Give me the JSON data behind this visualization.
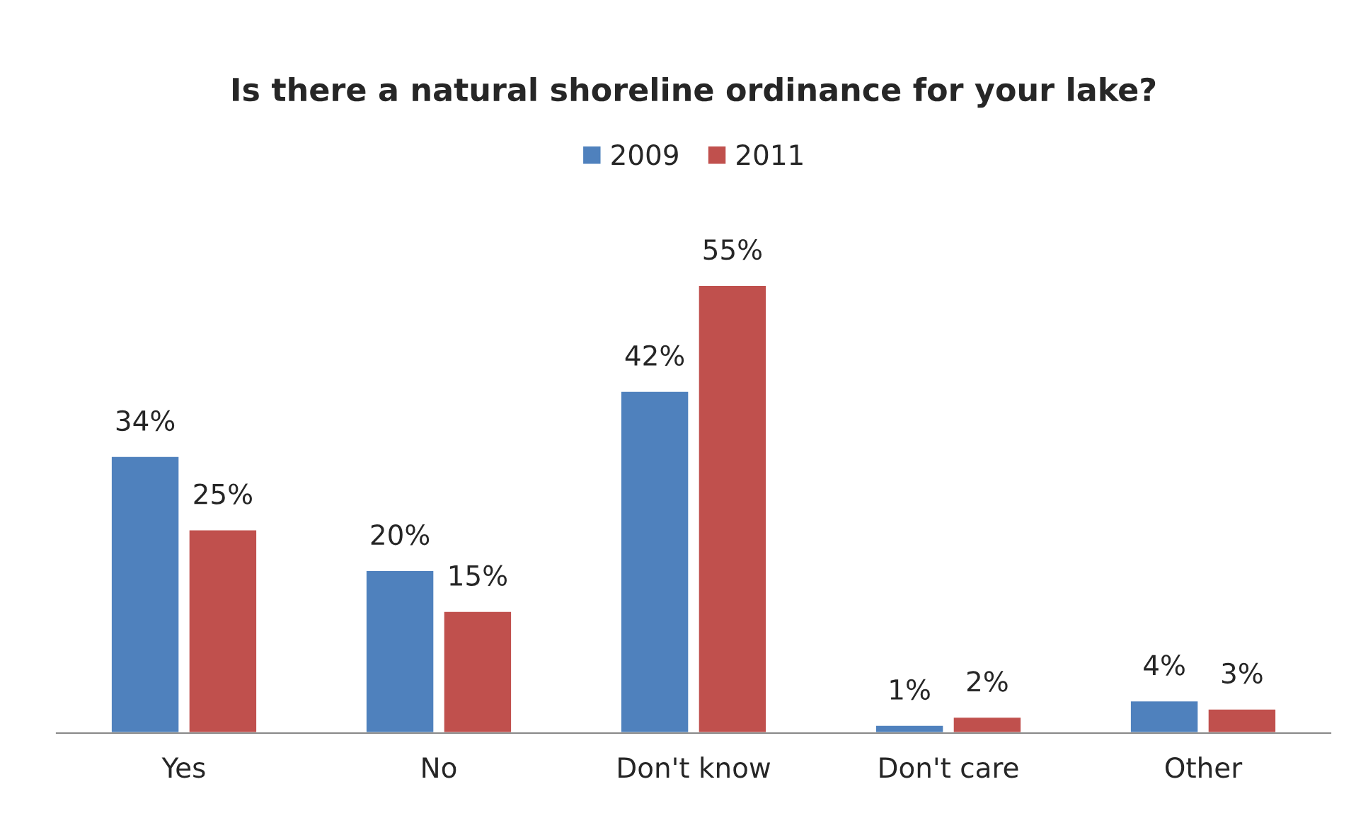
{
  "chart_data": {
    "type": "bar",
    "title": "Is there a natural shoreline ordinance for your lake?",
    "categories": [
      "Yes",
      "No",
      "Don't know",
      "Don't care",
      "Other"
    ],
    "series": [
      {
        "name": "2009",
        "color": "#4f81bd",
        "values": [
          34,
          20,
          42,
          1,
          4
        ],
        "value_labels": [
          "34%",
          "20%",
          "42%",
          "1%",
          "4%"
        ]
      },
      {
        "name": "2011",
        "color": "#c0504d",
        "values": [
          25,
          15,
          55,
          2,
          3
        ],
        "value_labels": [
          "25%",
          "15%",
          "55%",
          "2%",
          "3%"
        ]
      }
    ],
    "legend": "top",
    "grid": false
  }
}
